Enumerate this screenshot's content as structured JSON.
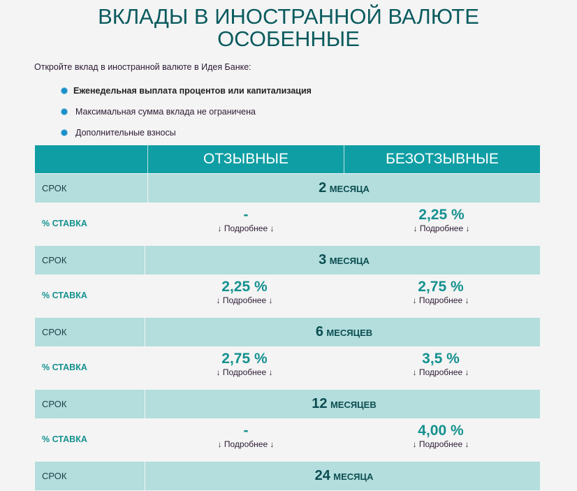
{
  "title_line1": "ВКЛАДЫ В ИНОСТРАННОЙ ВАЛЮТЕ",
  "title_line2": "ОСОБЕННЫЕ",
  "intro": "Откройте вклад в иностранной валюте в Идея Банке:",
  "features": [
    "Еженедельная выплата процентов или капитализация",
    "Максимальная сумма вклада не ограничена",
    "Дополнительные взносы"
  ],
  "table": {
    "col_revocable": "ОТЗЫВНЫЕ",
    "col_irrevocable": "БЕЗОТЗЫВНЫЕ",
    "term_label": "СРОК",
    "rate_label": "% СТАВКА",
    "more_label": "↓ Подробнее ↓",
    "rows": [
      {
        "term_num": "2",
        "term_unit": "МЕСЯЦА",
        "revocable": "-",
        "irrevocable": "2,25 %"
      },
      {
        "term_num": "3",
        "term_unit": "МЕСЯЦА",
        "revocable": "2,25 %",
        "irrevocable": "2,75 %"
      },
      {
        "term_num": "6",
        "term_unit": "МЕСЯЦЕВ",
        "revocable": "2,75 %",
        "irrevocable": "3,5 %"
      },
      {
        "term_num": "12",
        "term_unit": "МЕСЯЦЕВ",
        "revocable": "-",
        "irrevocable": "4,00 %"
      },
      {
        "term_num": "24",
        "term_unit": "МЕСЯЦА"
      }
    ]
  },
  "colors": {
    "header": "#0f9ea4",
    "term_row": "#b3dedd",
    "accent": "#14918f",
    "title": "#0a5a5e",
    "bullet": "#1a8fc8"
  }
}
